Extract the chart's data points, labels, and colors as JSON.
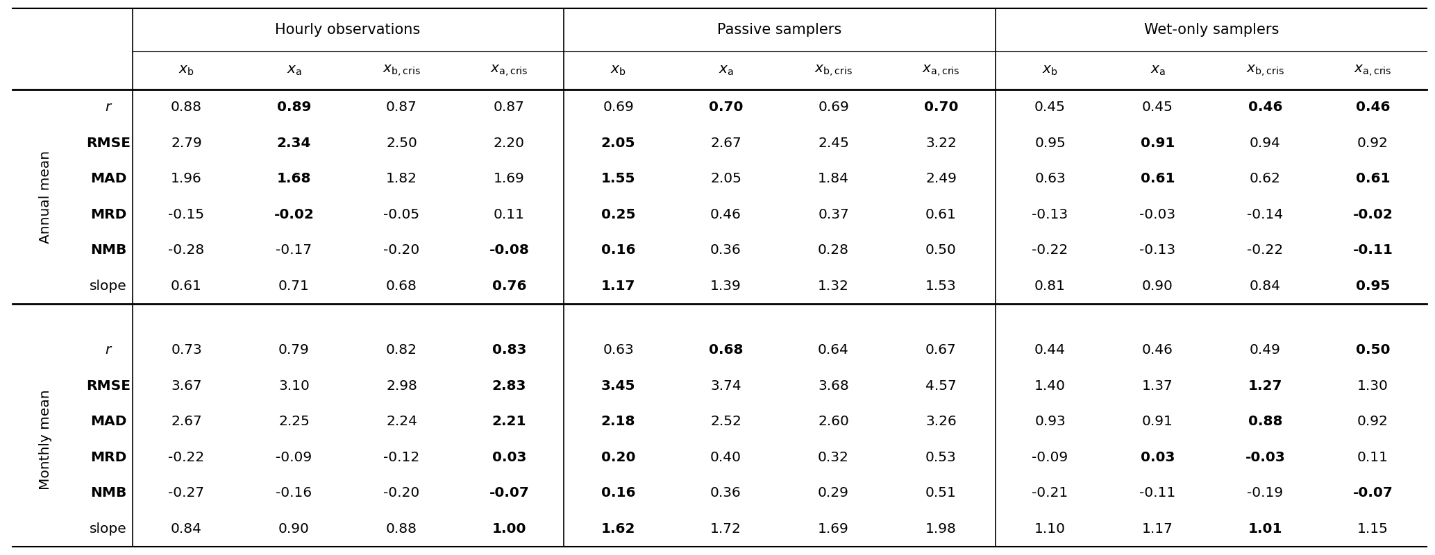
{
  "col_groups": [
    {
      "label": "Hourly observations"
    },
    {
      "label": "Passive samplers"
    },
    {
      "label": "Wet-only samplers"
    }
  ],
  "sub_headers": [
    "$x_\\mathrm{b}$",
    "$x_\\mathrm{a}$",
    "$x_\\mathrm{b,cris}$",
    "$x_\\mathrm{a,cris}$",
    "$x_\\mathrm{b}$",
    "$x_\\mathrm{a}$",
    "$x_\\mathrm{b,cris}$",
    "$x_\\mathrm{a,cris}$",
    "$x_\\mathrm{b}$",
    "$x_\\mathrm{a}$",
    "$x_\\mathrm{b,cris}$",
    "$x_\\mathrm{a,cris}$"
  ],
  "row_groups": [
    {
      "group_label": "Annual mean",
      "rows": [
        {
          "metric": "r",
          "italic": true,
          "bold_metric": false,
          "values": [
            "0.88",
            "0.89",
            "0.87",
            "0.87",
            "0.69",
            "0.70",
            "0.69",
            "0.70",
            "0.45",
            "0.45",
            "0.46",
            "0.46"
          ]
        },
        {
          "metric": "RMSE",
          "italic": false,
          "bold_metric": true,
          "values": [
            "2.79",
            "2.34",
            "2.50",
            "2.20",
            "2.05",
            "2.67",
            "2.45",
            "3.22",
            "0.95",
            "0.91",
            "0.94",
            "0.92"
          ]
        },
        {
          "metric": "MAD",
          "italic": false,
          "bold_metric": true,
          "values": [
            "1.96",
            "1.68",
            "1.82",
            "1.69",
            "1.55",
            "2.05",
            "1.84",
            "2.49",
            "0.63",
            "0.61",
            "0.62",
            "0.61"
          ]
        },
        {
          "metric": "MRD",
          "italic": false,
          "bold_metric": true,
          "values": [
            "-0.15",
            "-0.02",
            "-0.05",
            "0.11",
            "0.25",
            "0.46",
            "0.37",
            "0.61",
            "-0.13",
            "-0.03",
            "-0.14",
            "-0.02"
          ]
        },
        {
          "metric": "NMB",
          "italic": false,
          "bold_metric": true,
          "values": [
            "-0.28",
            "-0.17",
            "-0.20",
            "-0.08",
            "0.16",
            "0.36",
            "0.28",
            "0.50",
            "-0.22",
            "-0.13",
            "-0.22",
            "-0.11"
          ]
        },
        {
          "metric": "slope",
          "italic": false,
          "bold_metric": false,
          "values": [
            "0.61",
            "0.71",
            "0.68",
            "0.76",
            "1.17",
            "1.39",
            "1.32",
            "1.53",
            "0.81",
            "0.90",
            "0.84",
            "0.95"
          ]
        }
      ]
    },
    {
      "group_label": "Monthly mean",
      "rows": [
        {
          "metric": "r",
          "italic": true,
          "bold_metric": false,
          "values": [
            "0.73",
            "0.79",
            "0.82",
            "0.83",
            "0.63",
            "0.68",
            "0.64",
            "0.67",
            "0.44",
            "0.46",
            "0.49",
            "0.50"
          ]
        },
        {
          "metric": "RMSE",
          "italic": false,
          "bold_metric": true,
          "values": [
            "3.67",
            "3.10",
            "2.98",
            "2.83",
            "3.45",
            "3.74",
            "3.68",
            "4.57",
            "1.40",
            "1.37",
            "1.27",
            "1.30"
          ]
        },
        {
          "metric": "MAD",
          "italic": false,
          "bold_metric": true,
          "values": [
            "2.67",
            "2.25",
            "2.24",
            "2.21",
            "2.18",
            "2.52",
            "2.60",
            "3.26",
            "0.93",
            "0.91",
            "0.88",
            "0.92"
          ]
        },
        {
          "metric": "MRD",
          "italic": false,
          "bold_metric": true,
          "values": [
            "-0.22",
            "-0.09",
            "-0.12",
            "0.03",
            "0.20",
            "0.40",
            "0.32",
            "0.53",
            "-0.09",
            "0.03",
            "-0.03",
            "0.11"
          ]
        },
        {
          "metric": "NMB",
          "italic": false,
          "bold_metric": true,
          "values": [
            "-0.27",
            "-0.16",
            "-0.20",
            "-0.07",
            "0.16",
            "0.36",
            "0.29",
            "0.51",
            "-0.21",
            "-0.11",
            "-0.19",
            "-0.07"
          ]
        },
        {
          "metric": "slope",
          "italic": false,
          "bold_metric": false,
          "values": [
            "0.84",
            "0.90",
            "0.88",
            "1.00",
            "1.62",
            "1.72",
            "1.69",
            "1.98",
            "1.10",
            "1.17",
            "1.01",
            "1.15"
          ]
        }
      ]
    }
  ],
  "bold_annual": [
    [
      false,
      true,
      false,
      false,
      false,
      true,
      false,
      true,
      false,
      false,
      true,
      true
    ],
    [
      false,
      true,
      false,
      false,
      true,
      false,
      false,
      false,
      false,
      true,
      false,
      false
    ],
    [
      false,
      true,
      false,
      false,
      true,
      false,
      false,
      false,
      false,
      true,
      false,
      true
    ],
    [
      false,
      true,
      false,
      false,
      true,
      false,
      false,
      false,
      false,
      false,
      false,
      true
    ],
    [
      false,
      false,
      false,
      true,
      true,
      false,
      false,
      false,
      false,
      false,
      false,
      true
    ],
    [
      false,
      false,
      false,
      true,
      true,
      false,
      false,
      false,
      false,
      false,
      false,
      true
    ]
  ],
  "bold_monthly": [
    [
      false,
      false,
      false,
      true,
      false,
      true,
      false,
      false,
      false,
      false,
      false,
      true
    ],
    [
      false,
      false,
      false,
      true,
      true,
      false,
      false,
      false,
      false,
      false,
      true,
      false
    ],
    [
      false,
      false,
      false,
      true,
      true,
      false,
      false,
      false,
      false,
      false,
      true,
      false
    ],
    [
      false,
      false,
      false,
      true,
      true,
      false,
      false,
      false,
      false,
      true,
      true,
      false
    ],
    [
      false,
      false,
      false,
      true,
      true,
      false,
      false,
      false,
      false,
      false,
      false,
      true
    ],
    [
      false,
      false,
      false,
      true,
      true,
      false,
      false,
      false,
      false,
      false,
      true,
      false
    ]
  ],
  "bg_color": "#ffffff",
  "line_color": "#000000",
  "font_size": 14.5,
  "header_font_size": 15
}
